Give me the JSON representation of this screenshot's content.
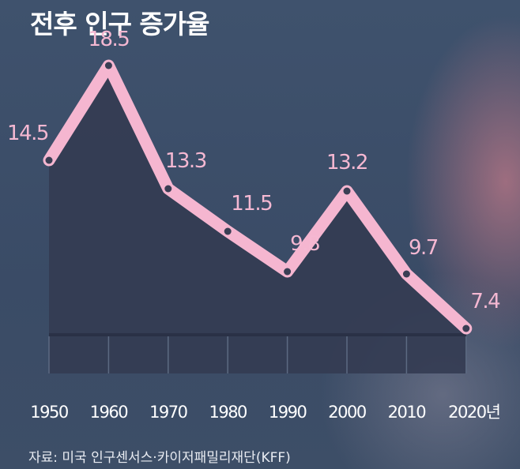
{
  "chart_data": {
    "type": "area",
    "title": "전후 인구 증가율",
    "x": [
      "1950",
      "1960",
      "1970",
      "1980",
      "1990",
      "2000",
      "2010",
      "2020년"
    ],
    "values": [
      14.5,
      18.5,
      13.3,
      11.5,
      9.8,
      13.2,
      9.7,
      7.4
    ],
    "value_labels": [
      "14.5",
      "18.5",
      "13.3",
      "11.5",
      "9.8",
      "13.2",
      "9.7",
      "7.4"
    ],
    "ylim": [
      0,
      20
    ],
    "grid": false,
    "legend": "none",
    "source": "자료: 미국 인구센서스·카이저패밀리재단(KFF)",
    "colors": {
      "line": "#f5b6d0",
      "marker": "#3a3e54",
      "fill": "#343c52",
      "baseline": "#2a3146",
      "text": "#ffffff",
      "label": "#f5b8d2"
    }
  }
}
